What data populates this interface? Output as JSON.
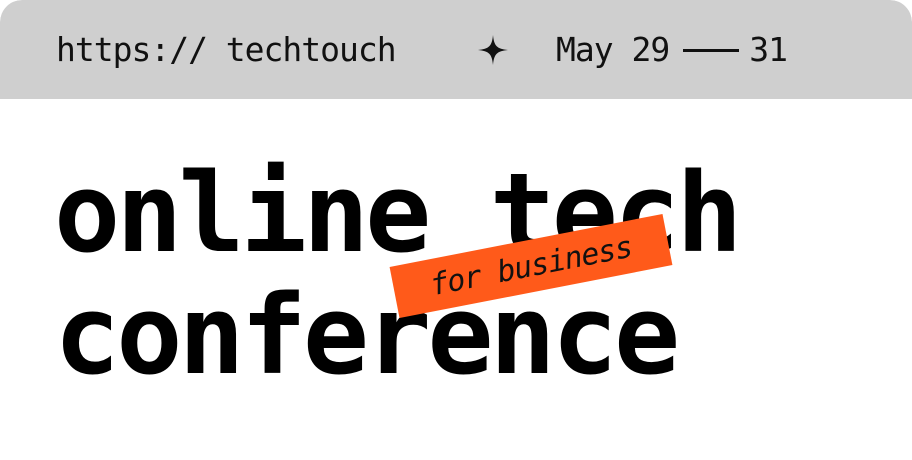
{
  "header": {
    "url": "https:// techtouch",
    "separator_icon": "sparkle-icon",
    "date_start": "May 29",
    "date_end": "31"
  },
  "headline": {
    "line1": "online tech",
    "line2": "conference",
    "tag": "for business"
  },
  "colors": {
    "bar": "#cfcfcf",
    "tag": "#ff5a1a",
    "text": "#000000"
  }
}
